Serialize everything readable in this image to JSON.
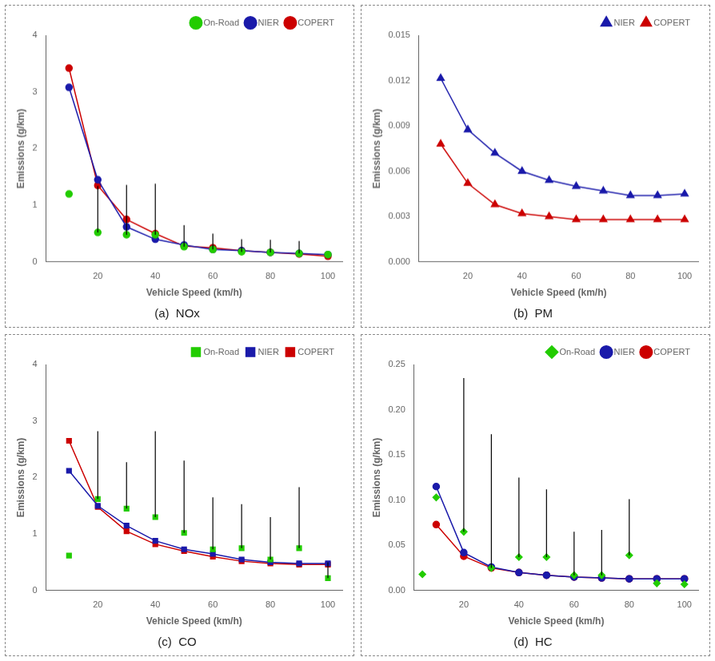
{
  "chart_data": [
    {
      "type": "line",
      "title": "(a)  NOx",
      "x_label": "Vehicle Speed (km/h)",
      "y_label": "Emissions (g/km)",
      "xlim": [
        2,
        105
      ],
      "xticks": [
        20,
        40,
        60,
        80,
        100
      ],
      "ylim": [
        0,
        4
      ],
      "yticks": [
        0,
        1,
        2,
        3,
        4
      ],
      "grid": false,
      "legend": "upper right",
      "series": [
        {
          "name": "On-Road",
          "color": "#22cc00",
          "marker": "circle",
          "line_style": "none",
          "x": [
            10,
            20,
            30,
            40,
            50,
            60,
            70,
            80,
            90,
            100
          ],
          "values": [
            1.2,
            0.52,
            0.48,
            0.48,
            0.27,
            0.22,
            0.18,
            0.17,
            0.15,
            0.13
          ],
          "yerr_high": [
            0.0,
            0.82,
            0.88,
            0.9,
            0.38,
            0.28,
            0.22,
            0.22,
            0.22,
            0.0
          ]
        },
        {
          "name": "NIER",
          "color": "#1a1aaa",
          "marker": "circle",
          "line_style": "solid",
          "x": [
            10,
            20,
            30,
            40,
            50,
            60,
            70,
            80,
            90,
            100
          ],
          "values": [
            3.08,
            1.45,
            0.62,
            0.4,
            0.3,
            0.22,
            0.2,
            0.17,
            0.15,
            0.13
          ]
        },
        {
          "name": "COPERT",
          "color": "#cc0000",
          "marker": "circle",
          "line_style": "solid",
          "x": [
            10,
            20,
            30,
            40,
            50,
            60,
            70,
            80,
            90,
            100
          ],
          "values": [
            3.42,
            1.35,
            0.75,
            0.5,
            0.28,
            0.25,
            0.2,
            0.17,
            0.14,
            0.1
          ]
        }
      ]
    },
    {
      "type": "line",
      "title": "(b)  PM",
      "x_label": "Vehicle Speed (km/h)",
      "y_label": "Emissions (g/km)",
      "xlim": [
        2,
        105
      ],
      "xticks": [
        20,
        40,
        60,
        80,
        100
      ],
      "ylim": [
        0.0,
        0.015
      ],
      "yticks": [
        {
          "value": 0,
          "label": "0.000"
        },
        0.003,
        0.006,
        0.009,
        0.012,
        0.015
      ],
      "grid": false,
      "legend": "upper right",
      "series": [
        {
          "name": "NIER",
          "color": "#1a1aaa",
          "marker": "triangle",
          "line_style": "solid",
          "x": [
            10,
            20,
            30,
            40,
            50,
            60,
            70,
            80,
            90,
            100
          ],
          "values": [
            0.01215,
            0.00875,
            0.0072,
            0.006,
            0.0054,
            0.005,
            0.0047,
            0.0044,
            0.0044,
            0.0045
          ]
        },
        {
          "name": "COPERT",
          "color": "#cc0000",
          "marker": "triangle",
          "line_style": "solid",
          "x": [
            10,
            20,
            30,
            40,
            50,
            60,
            70,
            80,
            90,
            100
          ],
          "values": [
            0.0078,
            0.0052,
            0.0038,
            0.0032,
            0.003,
            0.0028,
            0.0028,
            0.0028,
            0.0028,
            0.0028
          ]
        }
      ]
    },
    {
      "type": "line",
      "title": "(c)  CO",
      "x_label": "Vehicle Speed (km/h)",
      "y_label": "Emissions (g/km)",
      "xlim": [
        2,
        105
      ],
      "xticks": [
        20,
        40,
        60,
        80,
        100
      ],
      "ylim": [
        0,
        4
      ],
      "yticks": [
        0,
        1,
        2,
        3,
        4
      ],
      "grid": false,
      "legend": "upper right",
      "series": [
        {
          "name": "On-Road",
          "color": "#22cc00",
          "marker": "square",
          "line_style": "none",
          "x": [
            10,
            20,
            30,
            40,
            50,
            60,
            70,
            80,
            90,
            100
          ],
          "values": [
            0.62,
            1.62,
            1.45,
            1.3,
            1.02,
            0.73,
            0.75,
            0.55,
            0.75,
            0.22
          ],
          "yerr_high": [
            0.0,
            1.2,
            0.82,
            1.52,
            1.28,
            0.92,
            0.78,
            0.75,
            1.08,
            0.28
          ]
        },
        {
          "name": "NIER",
          "color": "#1a1aaa",
          "marker": "square",
          "line_style": "solid",
          "x": [
            10,
            20,
            30,
            40,
            50,
            60,
            70,
            80,
            90,
            100
          ],
          "values": [
            2.12,
            1.5,
            1.15,
            0.88,
            0.73,
            0.65,
            0.55,
            0.5,
            0.48,
            0.48
          ]
        },
        {
          "name": "COPERT",
          "color": "#cc0000",
          "marker": "square",
          "line_style": "solid",
          "x": [
            10,
            20,
            30,
            40,
            50,
            60,
            70,
            80,
            90,
            100
          ],
          "values": [
            2.65,
            1.48,
            1.05,
            0.82,
            0.7,
            0.6,
            0.52,
            0.48,
            0.46,
            0.46
          ]
        }
      ]
    },
    {
      "type": "line",
      "title": "(d)  HC",
      "x_label": "Vehicle Speed (km/h)",
      "y_label": "Emissions (g/km)",
      "xlim": [
        2,
        105
      ],
      "xticks": [
        20,
        40,
        60,
        80,
        100
      ],
      "ylim": [
        0.0,
        0.25
      ],
      "yticks": [
        {
          "value": 0,
          "label": "0.00"
        },
        0.05,
        {
          "value": 0.1,
          "label": "0.10"
        },
        0.15,
        {
          "value": 0.2,
          "label": "0.20"
        },
        0.25
      ],
      "grid": false,
      "legend": "upper right",
      "series": [
        {
          "name": "On-Road",
          "color": "#22cc00",
          "marker": "diamond",
          "line_style": "none",
          "x": [
            5,
            10,
            20,
            30,
            40,
            50,
            60,
            70,
            80,
            90,
            100
          ],
          "values": [
            0.018,
            0.103,
            0.065,
            0.025,
            0.037,
            0.037,
            0.017,
            0.017,
            0.039,
            0.008,
            0.007
          ],
          "yerr_high": [
            0.0,
            0.0,
            0.17,
            0.148,
            0.088,
            0.075,
            0.048,
            0.05,
            0.062,
            0.0,
            0.0
          ]
        },
        {
          "name": "NIER",
          "color": "#1a1aaa",
          "marker": "circle",
          "line_style": "solid",
          "x": [
            10,
            20,
            30,
            40,
            50,
            60,
            70,
            80,
            90,
            100
          ],
          "values": [
            0.115,
            0.042,
            0.026,
            0.02,
            0.017,
            0.015,
            0.014,
            0.013,
            0.013,
            0.013
          ]
        },
        {
          "name": "COPERT",
          "color": "#cc0000",
          "marker": "circle",
          "line_style": "solid",
          "x": [
            10,
            20,
            30,
            40,
            50,
            60,
            70,
            80,
            90,
            100
          ],
          "values": [
            0.073,
            0.038,
            0.025,
            0.02,
            0.017,
            0.015,
            0.014,
            0.013,
            0.013,
            0.013
          ]
        }
      ]
    }
  ]
}
